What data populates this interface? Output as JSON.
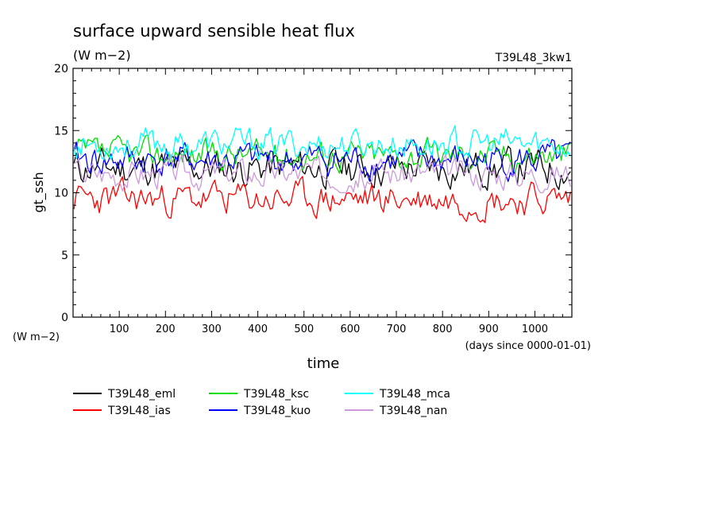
{
  "chart_data": {
    "type": "line",
    "title": "surface upward sensible heat flux",
    "units": "(W m−2)",
    "run_label": "T39L48_3kw1",
    "ylabel": "gt_ssh",
    "y_units": "(W m−2)",
    "xlabel": "time",
    "x_units": "(days since 0000-01-01)",
    "xlim": [
      0,
      1080
    ],
    "ylim": [
      0,
      20
    ],
    "x_ticks": [
      100,
      200,
      300,
      400,
      500,
      600,
      700,
      800,
      900,
      1000
    ],
    "y_ticks": [
      0,
      5,
      10,
      15,
      20
    ],
    "grid": false,
    "legend_position": "below",
    "sample_interval_days": 5,
    "series": [
      {
        "name": "T39L48_eml",
        "color": "#000000",
        "mean": 12.0,
        "amp": 1.1,
        "seed": 11,
        "values_summary": {
          "min": 9.5,
          "max": 14.0
        }
      },
      {
        "name": "T39L48_ias",
        "color": "#ff0000",
        "mean": 9.5,
        "amp": 1.0,
        "seed": 23,
        "values_summary": {
          "min": 7.5,
          "max": 11.5
        }
      },
      {
        "name": "T39L48_ksc",
        "color": "#00dd00",
        "mean": 13.1,
        "amp": 0.9,
        "seed": 37,
        "values_summary": {
          "min": 11.5,
          "max": 15.3
        }
      },
      {
        "name": "T39L48_kuo",
        "color": "#0000ff",
        "mean": 12.6,
        "amp": 1.0,
        "seed": 41,
        "values_summary": {
          "min": 10.5,
          "max": 15.2
        }
      },
      {
        "name": "T39L48_mca",
        "color": "#00ffff",
        "mean": 13.9,
        "amp": 0.9,
        "seed": 53,
        "values_summary": {
          "min": 12.5,
          "max": 16.1
        }
      },
      {
        "name": "T39L48_nan",
        "color": "#cc99dd",
        "mean": 11.6,
        "amp": 0.9,
        "seed": 67,
        "values_summary": {
          "min": 10.0,
          "max": 13.5
        }
      }
    ]
  }
}
